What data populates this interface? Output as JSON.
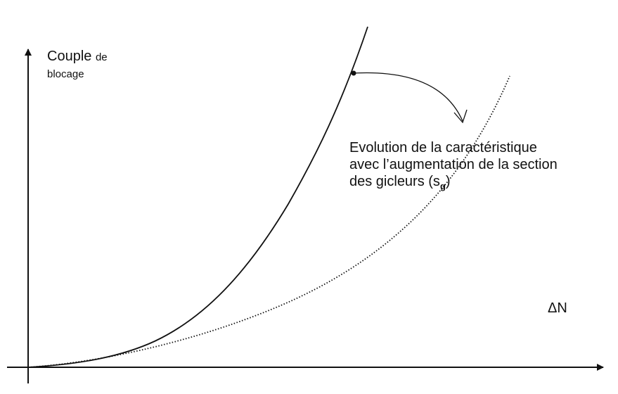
{
  "y_axis": {
    "label_main": "Couple",
    "label_small_1": "de",
    "label_small_2": "blocage"
  },
  "x_axis": {
    "label": "ΔN"
  },
  "annotation": {
    "line1": "Evolution de la caractéristique",
    "line2": "avec l’augmentation de la section",
    "line3_text": "des gicleurs (s",
    "line3_sub": "g",
    "line3_end": ")"
  },
  "curves": [
    {
      "style": "solid",
      "color": "#111111"
    },
    {
      "style": "dotted",
      "color": "#111111"
    }
  ]
}
